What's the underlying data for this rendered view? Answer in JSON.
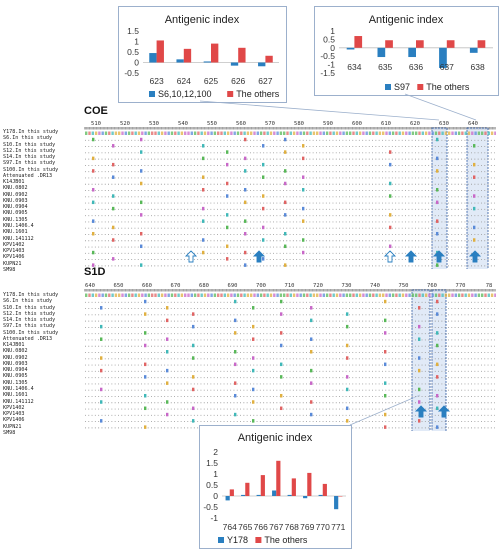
{
  "charts": {
    "coe_a": {
      "title": "Antigenic index",
      "type": "bar",
      "categories": [
        "623",
        "624",
        "625",
        "626",
        "627"
      ],
      "series": [
        {
          "name": "S6,10,12,100",
          "color": "#2a7fc0",
          "values": [
            0.45,
            0.15,
            0.05,
            -0.15,
            -0.18
          ]
        },
        {
          "name": "The others",
          "color": "#e04848",
          "values": [
            1.05,
            0.65,
            0.9,
            0.7,
            0.32
          ]
        }
      ],
      "yticks": [
        "1.5",
        "1",
        "0.5",
        "0",
        "-0.5"
      ],
      "ylim": [
        -0.5,
        1.5
      ]
    },
    "coe_b": {
      "title": "Antigenic index",
      "type": "bar",
      "categories": [
        "634",
        "635",
        "636",
        "637",
        "638"
      ],
      "series": [
        {
          "name": "S97",
          "color": "#2a7fc0",
          "values": [
            -0.1,
            -0.55,
            -0.55,
            -1.2,
            -0.3
          ]
        },
        {
          "name": "The others",
          "color": "#e04848",
          "values": [
            0.7,
            0.45,
            0.45,
            0.45,
            0.45
          ]
        }
      ],
      "yticks": [
        "1",
        "0.5",
        "0",
        "-0.5",
        "-1",
        "-1.5"
      ],
      "ylim": [
        -1.5,
        1
      ]
    },
    "s1d": {
      "title": "Antigenic index",
      "type": "bar",
      "categories": [
        "764",
        "765",
        "766",
        "767",
        "768",
        "769",
        "770",
        "771"
      ],
      "series": [
        {
          "name": "Y178",
          "color": "#2a7fc0",
          "values": [
            -0.2,
            0.05,
            0.05,
            0.25,
            0.05,
            -0.1,
            0.05,
            -0.6
          ]
        },
        {
          "name": "The others",
          "color": "#e04848",
          "values": [
            0.3,
            0.6,
            0.95,
            1.6,
            0.8,
            1.05,
            0.55,
            0.0
          ]
        }
      ],
      "yticks": [
        "2",
        "1.5",
        "1",
        "0.5",
        "0",
        "-0.5",
        "-1"
      ],
      "ylim": [
        -1,
        2
      ]
    }
  },
  "chart_data": [
    {
      "type": "bar",
      "title": "Antigenic index",
      "categories": [
        "623",
        "624",
        "625",
        "626",
        "627"
      ],
      "series": [
        {
          "name": "S6,10,12,100",
          "values": [
            0.45,
            0.15,
            0.05,
            -0.15,
            -0.18
          ]
        },
        {
          "name": "The others",
          "values": [
            1.05,
            0.65,
            0.9,
            0.7,
            0.32
          ]
        }
      ],
      "ylim": [
        -0.5,
        1.5
      ]
    },
    {
      "type": "bar",
      "title": "Antigenic index",
      "categories": [
        "634",
        "635",
        "636",
        "637",
        "638"
      ],
      "series": [
        {
          "name": "S97",
          "values": [
            -0.1,
            -0.55,
            -0.55,
            -1.2,
            -0.3
          ]
        },
        {
          "name": "The others",
          "values": [
            0.7,
            0.45,
            0.45,
            0.45,
            0.45
          ]
        }
      ],
      "ylim": [
        -1.5,
        1
      ]
    },
    {
      "type": "bar",
      "title": "Antigenic index",
      "categories": [
        "764",
        "765",
        "766",
        "767",
        "768",
        "769",
        "770",
        "771"
      ],
      "series": [
        {
          "name": "Y178",
          "values": [
            -0.2,
            0.05,
            0.05,
            0.25,
            0.05,
            -0.1,
            0.05,
            -0.6
          ]
        },
        {
          "name": "The others",
          "values": [
            0.3,
            0.6,
            0.95,
            1.6,
            0.8,
            1.05,
            0.55,
            0.0
          ]
        }
      ],
      "ylim": [
        -1,
        2
      ]
    }
  ],
  "sections": {
    "coe": {
      "label": "COE",
      "ruler": [
        "510",
        "520",
        "530",
        "540",
        "550",
        "560",
        "570",
        "580",
        "590",
        "600",
        "610",
        "620",
        "630",
        "640"
      ],
      "strains": [
        "Y178.In this study",
        "S6.In this study",
        "S10.In this study",
        "S12.In this study",
        "S14.In this study",
        "S97.In this study",
        "S100.In this study",
        "Attenuated .DR13",
        "K14JB01",
        "KNU.0802",
        "KNU.0902",
        "KNU.0903",
        "KNU.0904",
        "KNU.0905",
        "KNU.1305",
        "KNU.1406.4",
        "KNU.1601",
        "KNU.141112",
        "KPV1402",
        "KPV1403",
        "KPV1406",
        "KUPN21",
        "SM98"
      ]
    },
    "s1d": {
      "label": "S1D",
      "ruler": [
        "640",
        "650",
        "660",
        "670",
        "680",
        "690",
        "700",
        "710",
        "720",
        "730",
        "740",
        "750",
        "760",
        "770",
        "78"
      ],
      "strains": [
        "Y178.In this study",
        "S6.In this study",
        "S10.In this study",
        "S12.In this study",
        "S14.In this study",
        "S97.In this study",
        "S100.In this study",
        "Attenuated .DR13",
        "K14JB01",
        "KNU.0802",
        "KNU.0902",
        "KNU.0903",
        "KNU.0904",
        "KNU.0905",
        "KNU.1305",
        "KNU.1406.4",
        "KNU.1601",
        "KNU.141112",
        "KPV1402",
        "KPV1403",
        "KPV1406",
        "KUPN21",
        "SM98"
      ]
    }
  },
  "colors": {
    "blue": "#2a7fc0",
    "red": "#e04848",
    "highlight_fill": "#c9d9f0",
    "highlight_border": "#2c57a0",
    "arrow_blue": "#2a7fc0"
  }
}
